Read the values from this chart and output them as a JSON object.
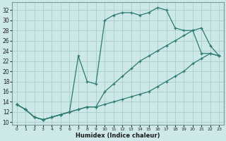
{
  "xlabel": "Humidex (Indice chaleur)",
  "bg_color": "#cde8e8",
  "line_color": "#2d7a6e",
  "grid_color": "#b0d0d0",
  "xlim": [
    -0.5,
    23.5
  ],
  "ylim": [
    9.5,
    33.5
  ],
  "xticks": [
    0,
    1,
    2,
    3,
    4,
    5,
    6,
    7,
    8,
    9,
    10,
    11,
    12,
    13,
    14,
    15,
    16,
    17,
    18,
    19,
    20,
    21,
    22,
    23
  ],
  "yticks": [
    10,
    12,
    14,
    16,
    18,
    20,
    22,
    24,
    26,
    28,
    30,
    32
  ],
  "line1_x": [
    0,
    1,
    2,
    3,
    4,
    5,
    6,
    7,
    8,
    9,
    10,
    11,
    12,
    13,
    14,
    15,
    16,
    17,
    18,
    19,
    20,
    21,
    22,
    23
  ],
  "line1_y": [
    13.5,
    12.5,
    11.0,
    10.5,
    11.0,
    11.5,
    12.0,
    12.5,
    13.0,
    13.0,
    13.5,
    14.0,
    14.5,
    15.0,
    15.5,
    16.0,
    17.0,
    18.0,
    19.0,
    20.0,
    21.5,
    22.5,
    23.5,
    23.0
  ],
  "line2_x": [
    0,
    1,
    2,
    3,
    4,
    5,
    6,
    7,
    8,
    9,
    10,
    11,
    12,
    13,
    14,
    15,
    16,
    17,
    18,
    19,
    20,
    21,
    22,
    23
  ],
  "line2_y": [
    13.5,
    12.5,
    11.0,
    10.5,
    11.0,
    11.5,
    12.0,
    23.0,
    18.0,
    17.5,
    30.0,
    31.0,
    31.5,
    31.5,
    31.0,
    31.5,
    32.5,
    32.0,
    28.5,
    28.0,
    28.0,
    23.5,
    23.5,
    23.0
  ],
  "line3_x": [
    0,
    1,
    2,
    3,
    4,
    5,
    6,
    7,
    8,
    9,
    10,
    11,
    12,
    13,
    14,
    15,
    16,
    17,
    18,
    19,
    20,
    21,
    22,
    23
  ],
  "line3_y": [
    13.5,
    12.5,
    11.0,
    10.5,
    11.0,
    11.5,
    12.0,
    12.5,
    13.0,
    13.0,
    16.0,
    17.5,
    19.0,
    20.5,
    22.0,
    23.0,
    24.0,
    25.0,
    26.0,
    27.0,
    28.0,
    28.5,
    25.0,
    23.0
  ]
}
